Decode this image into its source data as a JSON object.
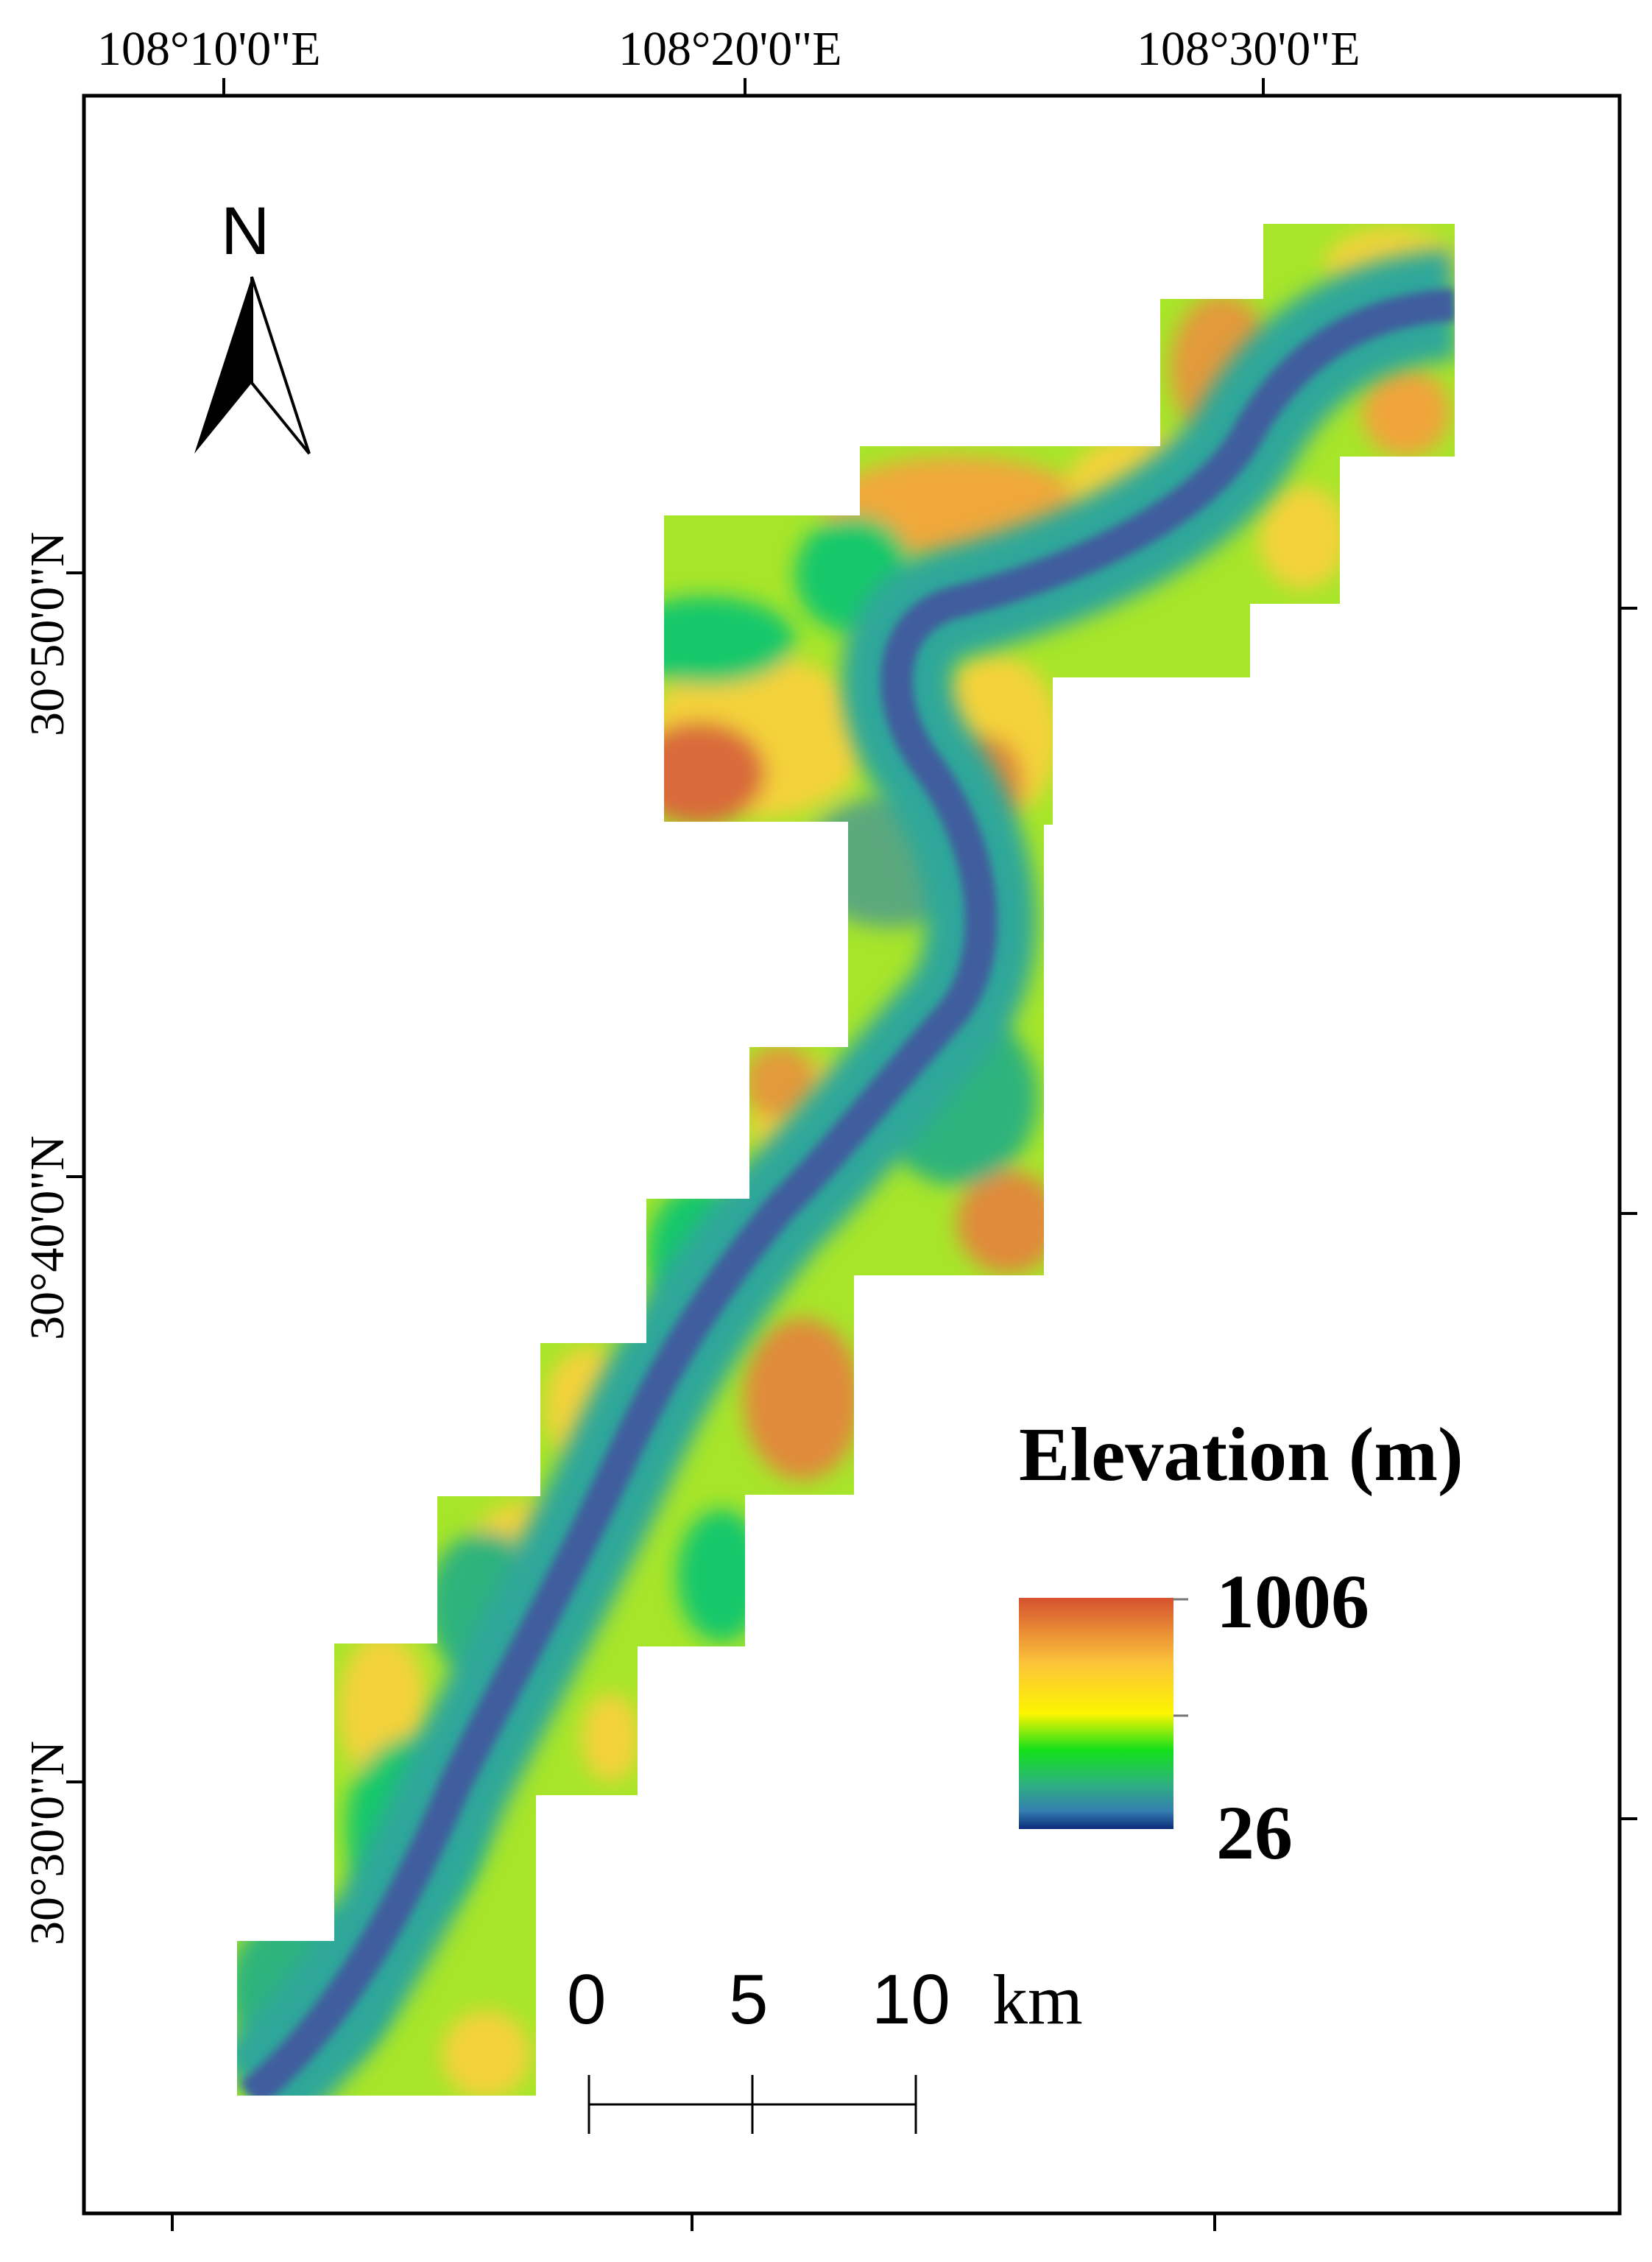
{
  "axes": {
    "top_labels": [
      "108°10'0\"E",
      "108°20'0\"E",
      "108°30'0\"E"
    ],
    "left_labels": [
      "30°50'0\"N",
      "30°40'0\"N",
      "30°30'0\"N"
    ]
  },
  "north_arrow": {
    "letter": "N",
    "icon": "north-arrow-icon"
  },
  "legend": {
    "title": "Elevation (m)",
    "max_label": "1006",
    "min_label": "26",
    "gradient_colors": [
      "#d6512f",
      "#fbc33a",
      "#fdf500",
      "#12e01a",
      "#2db37c",
      "#357fb0",
      "#0b2b7b"
    ]
  },
  "scale_bar": {
    "labels": [
      "0",
      "5",
      "10"
    ],
    "unit": "km"
  },
  "colors": {
    "river": "#3f5d9e",
    "valley": "#3a8fa0",
    "lowland": "#18c86a",
    "midland": "#a7e52a",
    "upland": "#f4d23a",
    "peak": "#d96a3a"
  }
}
